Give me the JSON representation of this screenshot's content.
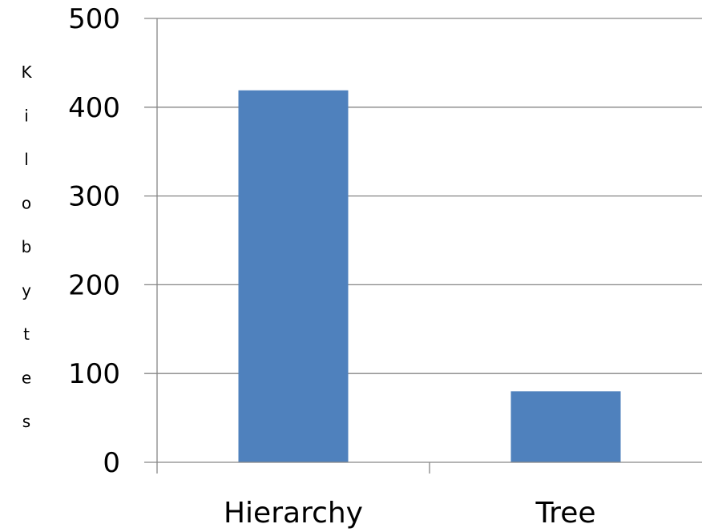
{
  "chart_data": {
    "type": "bar",
    "title": "",
    "xlabel": "",
    "ylabel": "Kilobytes",
    "categories": [
      "Hierarchy",
      "Tree"
    ],
    "values": [
      419,
      80
    ],
    "ylim": [
      0,
      500
    ],
    "yticks": [
      0,
      100,
      200,
      300,
      400,
      500
    ],
    "grid": true,
    "bar_color": "#4F81BD",
    "grid_color": "#868686"
  }
}
